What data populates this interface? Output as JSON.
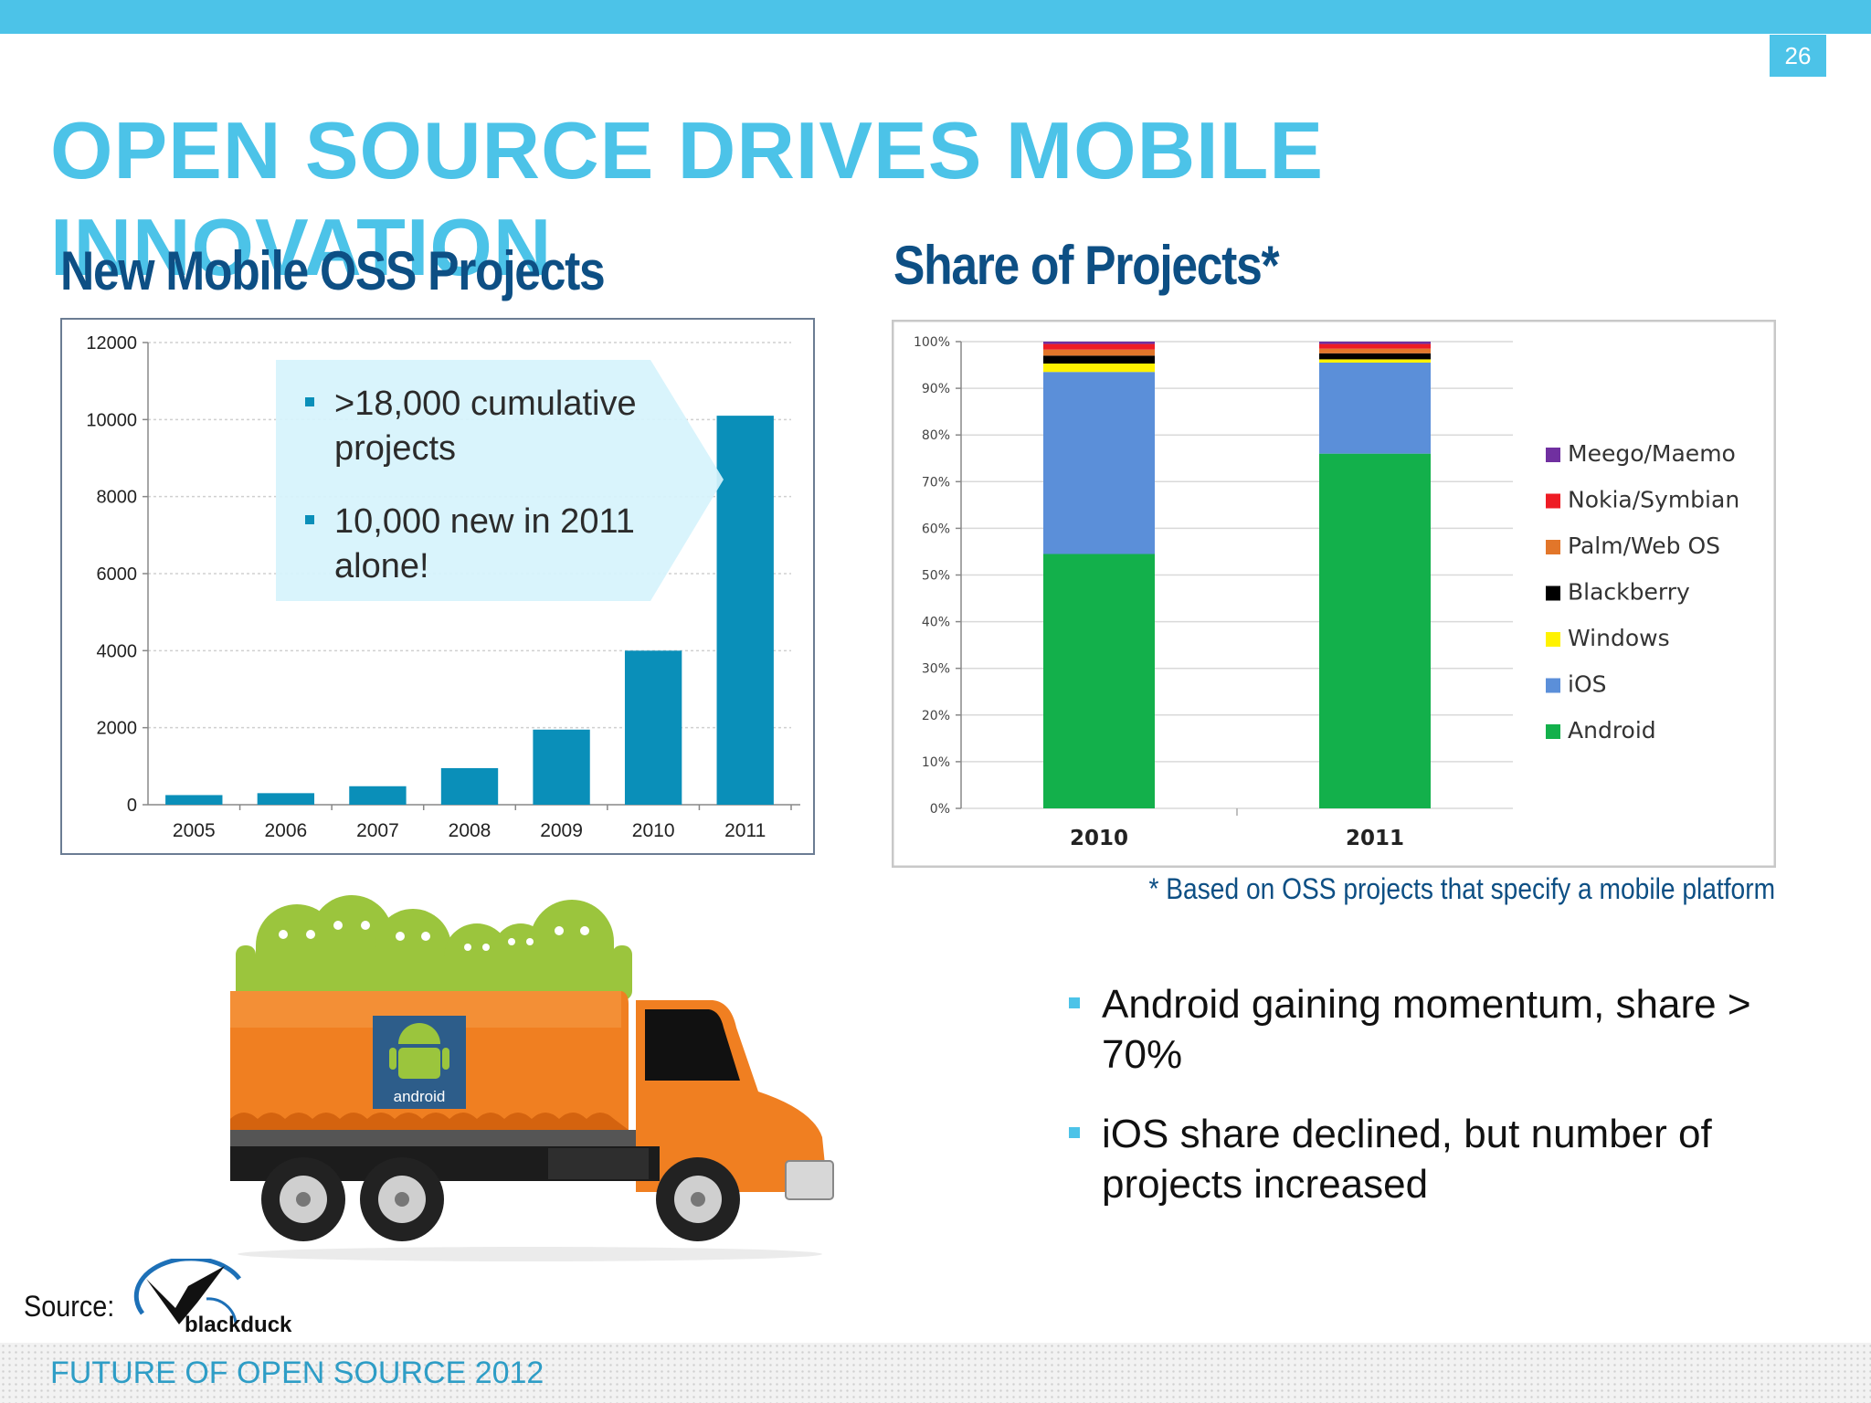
{
  "page_number": "26",
  "title": "OPEN SOURCE DRIVES MOBILE INNOVATION",
  "left_heading": "New Mobile OSS Projects",
  "right_heading": "Share of Projects*",
  "callout": {
    "line1": ">18,000 cumulative projects",
    "line2": "10,000 new in 2011 alone!"
  },
  "footnote": "* Based on OSS projects that specify a mobile platform",
  "bullets": [
    "Android gaining momentum, share > 70%",
    "iOS share declined, but number of projects increased"
  ],
  "truck_label": "android",
  "source_label": "Source:",
  "logo_text": "blackduck",
  "footer": "FUTURE OF OPEN SOURCE 2012",
  "chart_data": [
    {
      "type": "bar",
      "categories": [
        "2005",
        "2006",
        "2007",
        "2008",
        "2009",
        "2010",
        "2011"
      ],
      "values": [
        250,
        300,
        480,
        950,
        1950,
        4000,
        10100
      ],
      "ylim": [
        0,
        12000
      ],
      "yticks": [
        "0",
        "2000",
        "4000",
        "6000",
        "8000",
        "10000",
        "12000"
      ],
      "grid": true,
      "color": "#0a8fb9"
    },
    {
      "type": "bar",
      "stacked": true,
      "categories": [
        "2010",
        "2011"
      ],
      "ylim": [
        0,
        100
      ],
      "yticks": [
        "0%",
        "10%",
        "20%",
        "30%",
        "40%",
        "50%",
        "60%",
        "70%",
        "80%",
        "90%",
        "100%"
      ],
      "legend_position": "right",
      "series": [
        {
          "name": "Android",
          "color": "#13b04b",
          "values": [
            54.5,
            76
          ]
        },
        {
          "name": "iOS",
          "color": "#5b8fd9",
          "values": [
            39,
            19.5
          ]
        },
        {
          "name": "Windows",
          "color": "#fff200",
          "values": [
            1.8,
            0.7
          ]
        },
        {
          "name": "Blackberry",
          "color": "#000000",
          "values": [
            1.7,
            1.3
          ]
        },
        {
          "name": "Palm/Web OS",
          "color": "#e2762a",
          "values": [
            1.3,
            1.0
          ]
        },
        {
          "name": "Nokia/Symbian",
          "color": "#ee1c24",
          "values": [
            1.2,
            1.0
          ]
        },
        {
          "name": "Meego/Maemo",
          "color": "#7030a0",
          "values": [
            0.5,
            0.5
          ]
        }
      ],
      "legend_order": [
        "Meego/Maemo",
        "Nokia/Symbian",
        "Palm/Web OS",
        "Blackberry",
        "Windows",
        "iOS",
        "Android"
      ]
    }
  ]
}
